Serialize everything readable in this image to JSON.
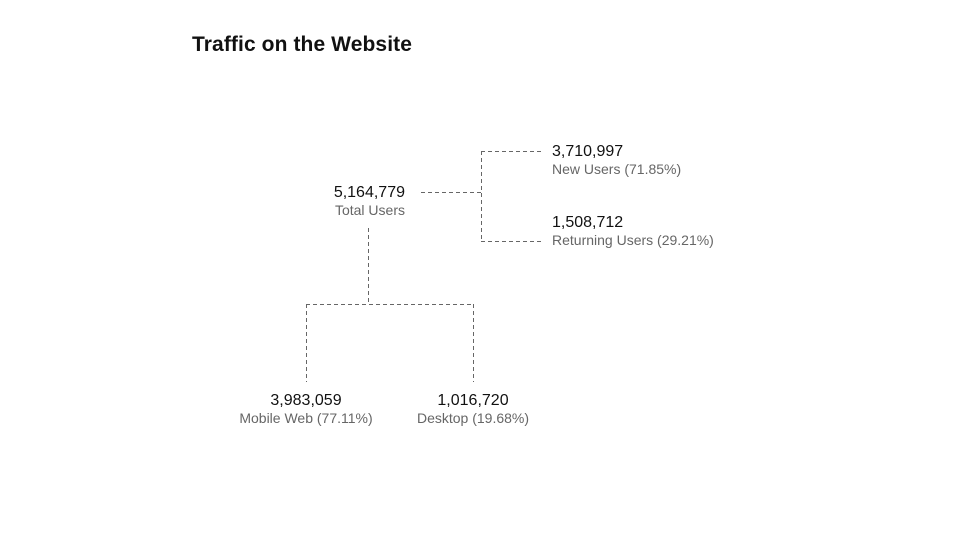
{
  "title": "Traffic on the Website",
  "nodes": {
    "total": {
      "value": "5,164,779",
      "label": "Total Users"
    },
    "new_users": {
      "value": "3,710,997",
      "label": "New Users (71.85%)"
    },
    "returning_users": {
      "value": "1,508,712",
      "label": "Returning Users (29.21%)"
    },
    "mobile_web": {
      "value": "3,983,059",
      "label": "Mobile Web (77.11%)"
    },
    "desktop": {
      "value": "1,016,720",
      "label": "Desktop (19.68%)"
    }
  },
  "colors": {
    "text_primary": "#111111",
    "text_secondary": "#666666",
    "connector": "#666666"
  }
}
